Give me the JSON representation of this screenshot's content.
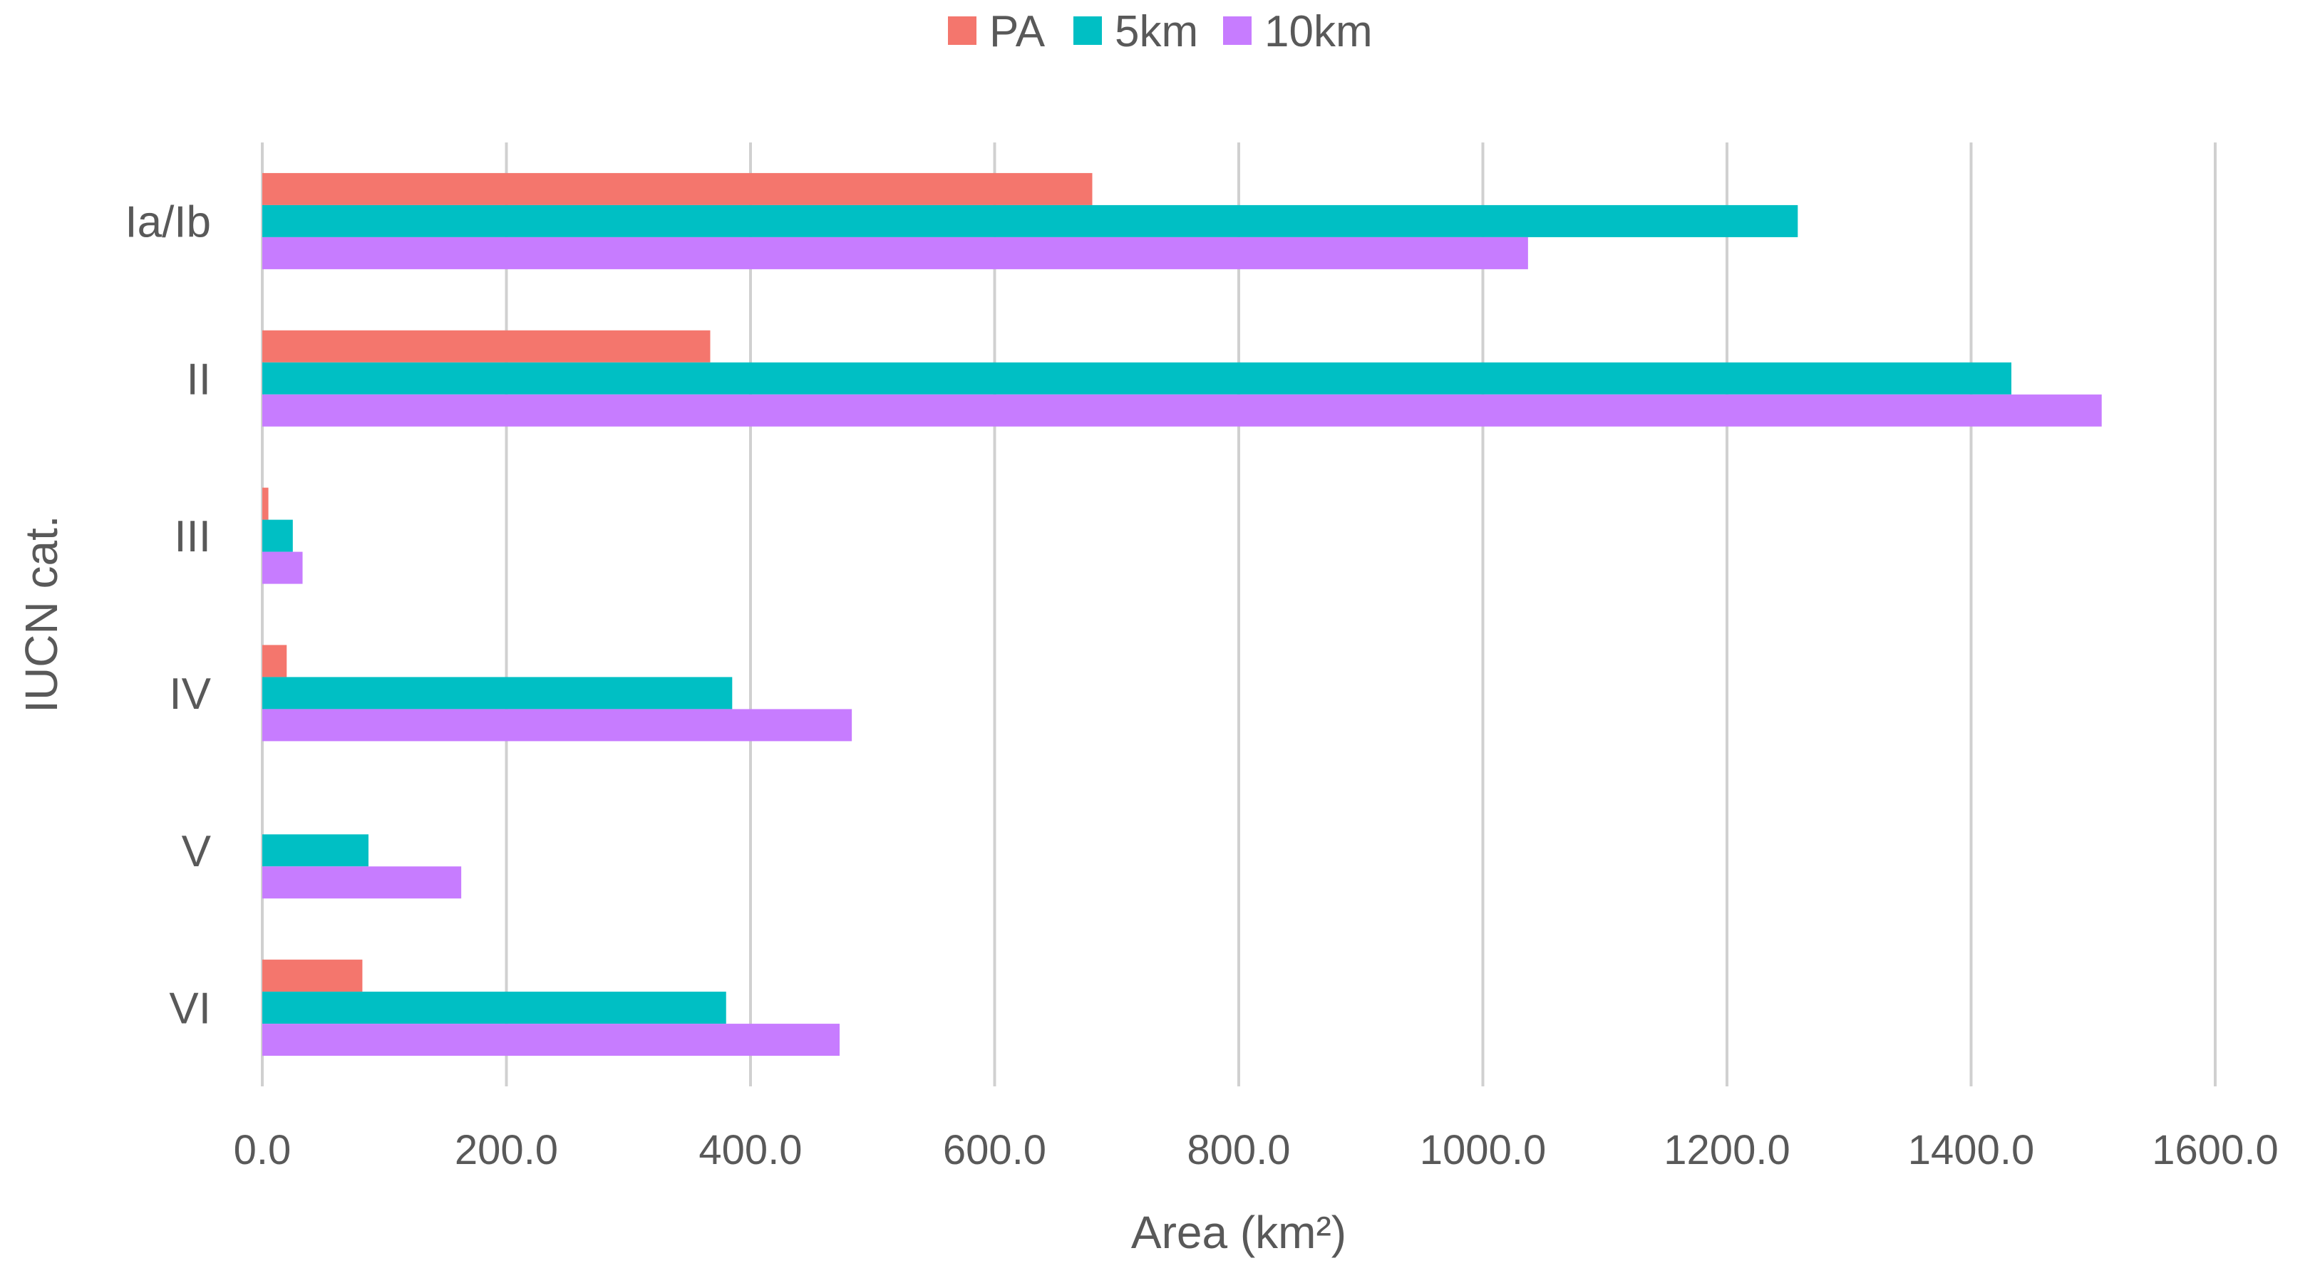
{
  "chart_data": {
    "type": "bar",
    "orientation": "horizontal",
    "title": "",
    "xlabel": "Area (km²)",
    "ylabel": "IUCN cat.",
    "categories": [
      "Ia/Ib",
      "II",
      "III",
      "IV",
      "V",
      "VI"
    ],
    "series": [
      {
        "name": "PA",
        "color": "#F4766D",
        "values": [
          680,
          367,
          5,
          20,
          0,
          82
        ]
      },
      {
        "name": "5km",
        "color": "#00BFC4",
        "values": [
          1258,
          1433,
          25,
          385,
          87,
          380
        ]
      },
      {
        "name": "10km",
        "color": "#C77CFF",
        "values": [
          1037,
          1507,
          33,
          483,
          163,
          473
        ]
      }
    ],
    "xlim": [
      0,
      1600
    ],
    "xticks": [
      "0.0",
      "200.0",
      "400.0",
      "600.0",
      "800.0",
      "1000.0",
      "1200.0",
      "1400.0",
      "1600.0"
    ],
    "grid": "vertical",
    "legend_position": "top"
  }
}
